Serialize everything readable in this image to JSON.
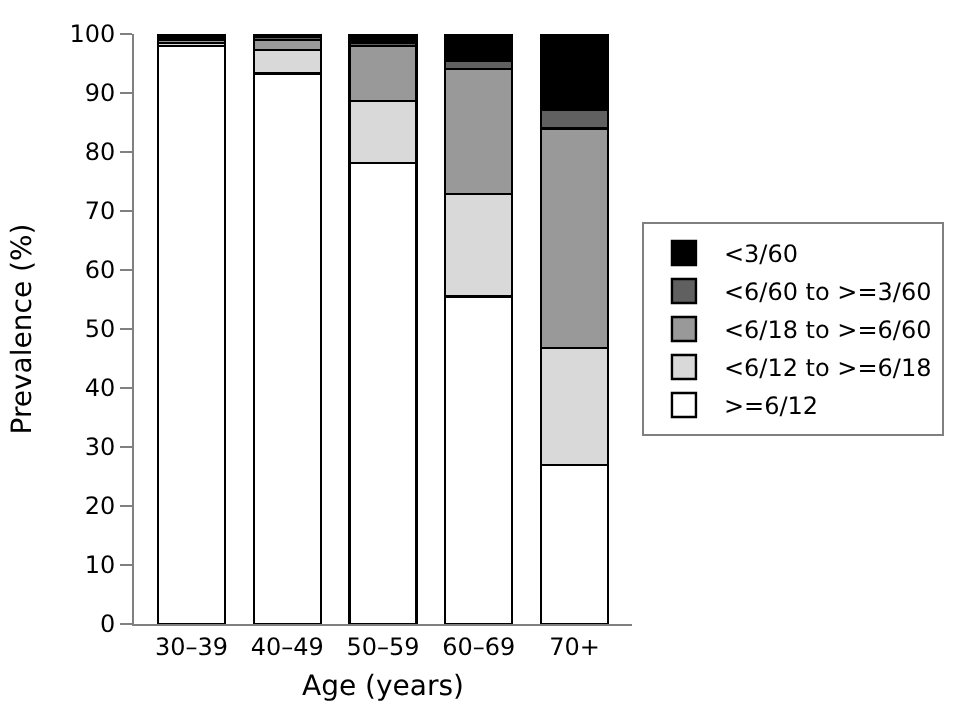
{
  "chart_data": {
    "type": "bar",
    "stacked": true,
    "xlabel": "Age (years)",
    "ylabel": "Prevalence (%)",
    "categories": [
      "30–39",
      "40–49",
      "50–59",
      "60–69",
      "70+"
    ],
    "ylim": [
      0,
      100
    ],
    "yticks": [
      0,
      10,
      20,
      30,
      40,
      50,
      60,
      70,
      80,
      90,
      100
    ],
    "legend": "right",
    "series": [
      {
        "name": ">=6/12",
        "color": "#ffffff",
        "values": [
          98.0,
          93.3,
          78.1,
          55.5,
          27.0
        ]
      },
      {
        "name": "<6/12 to >=6/18",
        "color": "#d9d9d9",
        "values": [
          0.5,
          4.0,
          10.5,
          17.4,
          19.8
        ]
      },
      {
        "name": "<6/18 to >=6/60",
        "color": "#999999",
        "values": [
          0.6,
          1.7,
          9.4,
          21.2,
          37.2
        ]
      },
      {
        "name": "<6/60 to >=3/60",
        "color": "#606060",
        "values": [
          0.3,
          0.5,
          0.5,
          1.3,
          3.2
        ]
      },
      {
        "name": "<3/60",
        "color": "#000000",
        "values": [
          0.6,
          0.5,
          1.5,
          4.6,
          12.8
        ]
      }
    ]
  }
}
